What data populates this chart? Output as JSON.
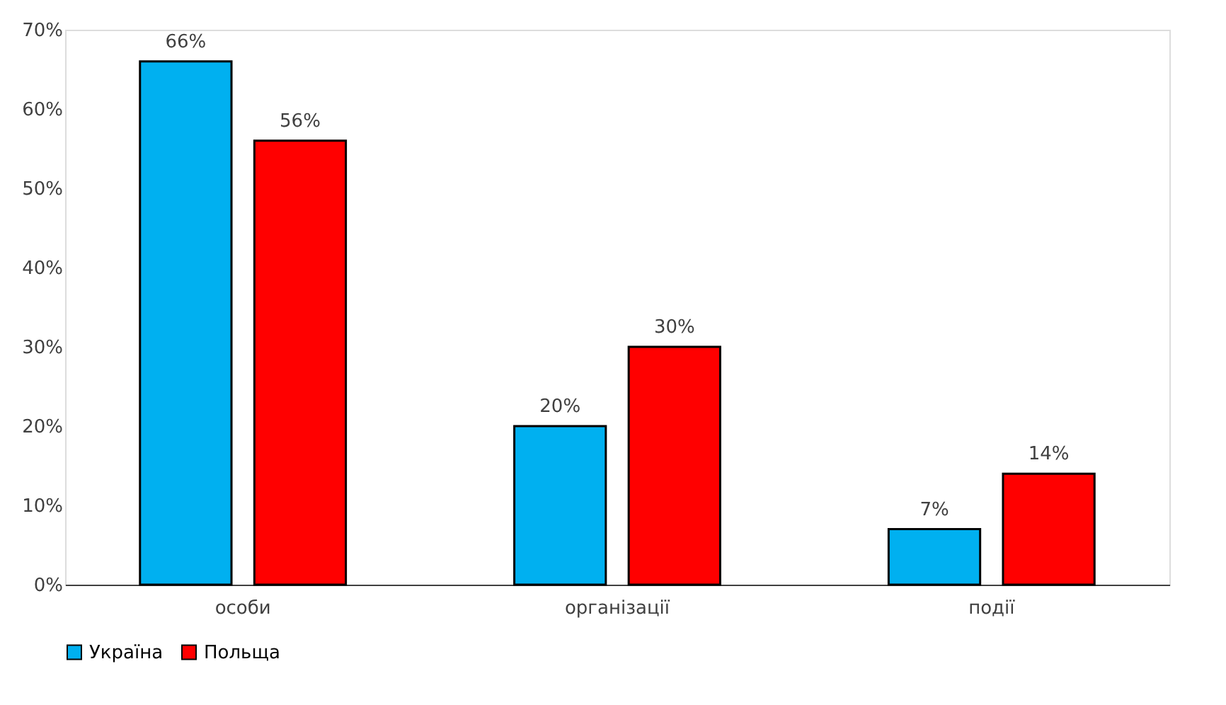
{
  "chart_data": {
    "type": "bar",
    "categories": [
      "особи",
      "організації",
      "події"
    ],
    "series": [
      {
        "name": "Україна",
        "color": "#00b0f0",
        "values": [
          66,
          20,
          7
        ],
        "value_labels": [
          "66%",
          "20%",
          "7%"
        ]
      },
      {
        "name": "Польща",
        "color": "#ff0000",
        "values": [
          56,
          30,
          14
        ],
        "value_labels": [
          "56%",
          "30%",
          "14%"
        ]
      }
    ],
    "ylim": [
      0,
      70
    ],
    "yticks": [
      {
        "value": 0,
        "label": "0%"
      },
      {
        "value": 10,
        "label": "10%"
      },
      {
        "value": 20,
        "label": "20%"
      },
      {
        "value": 30,
        "label": "30%"
      },
      {
        "value": 40,
        "label": "40%"
      },
      {
        "value": 50,
        "label": "50%"
      },
      {
        "value": 60,
        "label": "60%"
      },
      {
        "value": 70,
        "label": "70%"
      }
    ],
    "grid": false,
    "legend": "bottom"
  }
}
